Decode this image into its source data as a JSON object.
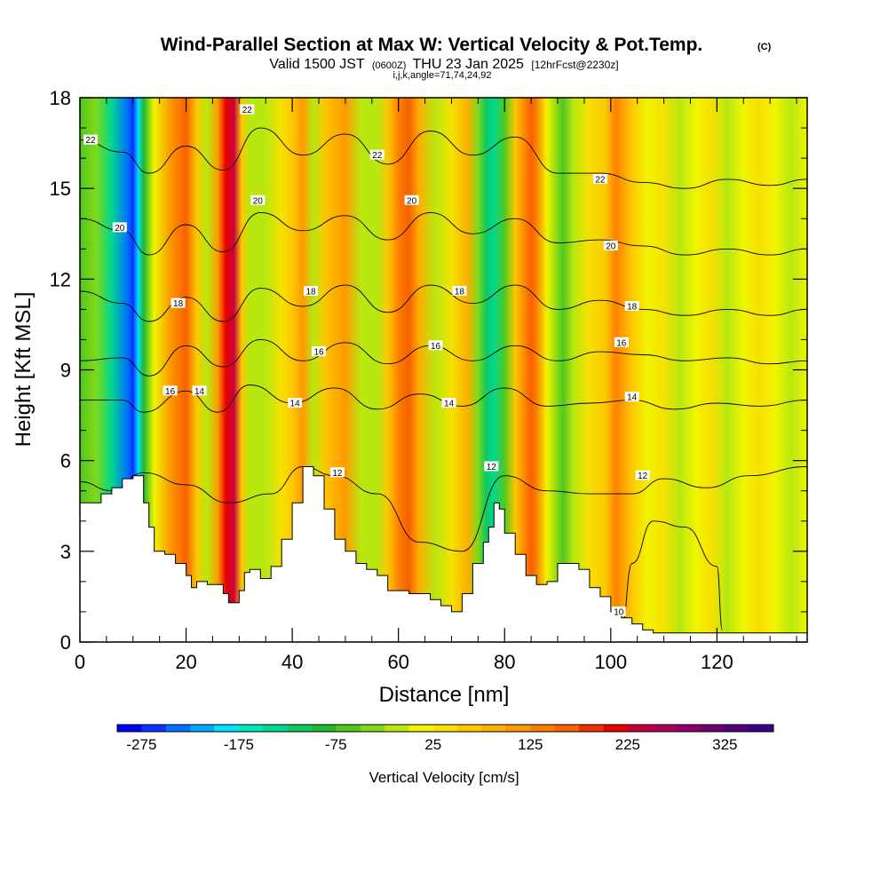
{
  "chart_data": {
    "type": "heatmap",
    "title": "Wind-Parallel Section at Max W: Vertical Velocity & Pot.Temp.",
    "copyright_mark": "(C)",
    "subtitle": {
      "valid_prefix": "Valid 1500 JST",
      "utc": "(0600Z)",
      "date": "THU 23 Jan 2025",
      "forecast": "[12hrFcst@2230z]"
    },
    "indices_line": "i,j,k,angle=71,74,24,92",
    "xlabel": "Distance [nm]",
    "ylabel": "Height [Kft MSL]",
    "xlim": [
      0,
      137
    ],
    "ylim": [
      0,
      18
    ],
    "x_ticks": [
      0,
      20,
      40,
      60,
      80,
      100,
      120
    ],
    "x_tick_labels": [
      "0",
      "20",
      "40",
      "60",
      "80",
      "100",
      "120"
    ],
    "y_ticks": [
      0,
      3,
      6,
      9,
      12,
      15,
      18
    ],
    "y_tick_labels": [
      "0",
      "3",
      "6",
      "9",
      "12",
      "15",
      "18"
    ],
    "colorbar": {
      "title": "Vertical Velocity [cm/s]",
      "min": -300,
      "max": 375,
      "step": 25,
      "tick_values": [
        -275,
        -175,
        -75,
        25,
        125,
        225,
        325
      ],
      "tick_labels": [
        "-275",
        "-175",
        "-75",
        "25",
        "125",
        "225",
        "325"
      ],
      "colors": [
        "#0000ff",
        "#0a32ff",
        "#0070ff",
        "#00a8ff",
        "#00e0ff",
        "#00e8b8",
        "#00d890",
        "#10c860",
        "#20b830",
        "#50c820",
        "#80d818",
        "#b8e810",
        "#f0f400",
        "#f8e000",
        "#fcc800",
        "#fcb000",
        "#fc9a00",
        "#fc8000",
        "#f86000",
        "#f03000",
        "#e80000",
        "#c8003a",
        "#b0005a",
        "#900068",
        "#6c0070",
        "#50007a",
        "#3a0088"
      ]
    },
    "fill_series": {
      "description_units": "vertical velocity cm/s",
      "x_grid": [
        0,
        3,
        6,
        9,
        10,
        11,
        12,
        14,
        17,
        20,
        22,
        24,
        26,
        27.5,
        29,
        30.5,
        32,
        35,
        38,
        40,
        42,
        44,
        46,
        48,
        50,
        53,
        56,
        58,
        60,
        62,
        64,
        67,
        70,
        73,
        75,
        76.5,
        78,
        80,
        82,
        84,
        85,
        86,
        88,
        91,
        93,
        96,
        99,
        101,
        104,
        107,
        110,
        113,
        116,
        119,
        122,
        125,
        128,
        131,
        134,
        137
      ],
      "w_values": [
        -75,
        -50,
        -150,
        -250,
        -275,
        -200,
        -100,
        0,
        100,
        150,
        50,
        -25,
        100,
        200,
        225,
        50,
        -25,
        -25,
        25,
        50,
        100,
        -25,
        50,
        75,
        100,
        -25,
        -25,
        50,
        125,
        150,
        75,
        -25,
        25,
        75,
        -50,
        -125,
        -150,
        -75,
        50,
        125,
        150,
        125,
        0,
        -75,
        -25,
        25,
        50,
        125,
        50,
        0,
        25,
        -25,
        0,
        25,
        -25,
        0,
        25,
        0,
        -25,
        0
      ]
    },
    "terrain_kft": {
      "x": [
        0,
        2,
        4,
        6,
        8,
        10,
        11,
        12,
        13,
        14,
        16,
        18,
        20,
        21,
        22,
        24,
        26,
        27,
        28,
        29,
        30,
        31,
        32,
        34,
        36,
        38,
        40,
        42,
        43,
        44,
        46,
        48,
        50,
        52,
        54,
        56,
        58,
        60,
        62,
        64,
        66,
        68,
        70,
        72,
        74,
        76,
        77,
        78,
        79,
        80,
        82,
        84,
        86,
        88,
        90,
        92,
        94,
        96,
        98,
        100,
        102,
        104,
        106,
        108,
        110,
        112,
        114,
        116,
        118,
        120,
        122,
        124,
        126,
        128,
        130,
        132,
        134,
        137
      ],
      "h": [
        4.6,
        4.6,
        4.9,
        5.1,
        5.4,
        5.5,
        5.5,
        4.6,
        3.8,
        3.0,
        2.9,
        2.6,
        2.2,
        1.8,
        2.0,
        1.9,
        1.9,
        1.6,
        1.3,
        1.3,
        1.7,
        2.3,
        2.4,
        2.1,
        2.5,
        3.4,
        4.6,
        5.8,
        5.8,
        5.5,
        4.4,
        3.4,
        3.0,
        2.6,
        2.4,
        2.2,
        1.7,
        1.7,
        1.6,
        1.6,
        1.4,
        1.2,
        1.0,
        1.6,
        2.6,
        3.3,
        3.8,
        4.6,
        4.4,
        3.6,
        2.9,
        2.2,
        1.9,
        2.0,
        2.6,
        2.6,
        2.4,
        1.8,
        1.5,
        1.0,
        0.8,
        0.6,
        0.4,
        0.3,
        0.3,
        0.3,
        0.3,
        0.3,
        0.3,
        0.3,
        0.3,
        0.3,
        0.3,
        0.3,
        0.3,
        0.3,
        0.3,
        0.3
      ]
    },
    "theta_contours": {
      "units": "deg C potential temperature",
      "series": [
        {
          "value": 10,
          "x": [
            102,
            104,
            108,
            114,
            120,
            121
          ],
          "y": [
            0.4,
            2.6,
            4.0,
            3.8,
            2.5,
            0.4
          ]
        },
        {
          "value": 12,
          "x": [
            0,
            6,
            12,
            20,
            28,
            36,
            42,
            48,
            56,
            64,
            72,
            80,
            88,
            96,
            104,
            110,
            118,
            126,
            137
          ],
          "y": [
            5.3,
            5.0,
            5.6,
            5.2,
            4.6,
            4.9,
            5.8,
            5.5,
            4.9,
            3.3,
            3.0,
            5.5,
            5.0,
            4.9,
            4.9,
            5.4,
            5.1,
            5.5,
            5.8
          ]
        },
        {
          "value": 14,
          "x": [
            0,
            8,
            12,
            20,
            26,
            32,
            40,
            48,
            56,
            64,
            72,
            80,
            88,
            96,
            104,
            112,
            120,
            128,
            137
          ],
          "y": [
            8.0,
            8.0,
            7.6,
            8.3,
            7.6,
            8.5,
            7.9,
            8.4,
            7.7,
            8.2,
            7.8,
            8.4,
            7.8,
            7.9,
            8.0,
            7.7,
            7.9,
            7.8,
            8.0
          ]
        },
        {
          "value": 16,
          "x": [
            0,
            8,
            13,
            20,
            27,
            34,
            42,
            50,
            58,
            66,
            74,
            82,
            90,
            98,
            106,
            114,
            122,
            130,
            137
          ],
          "y": [
            9.3,
            9.4,
            8.8,
            9.8,
            9.1,
            10.0,
            9.3,
            9.9,
            9.2,
            9.8,
            9.3,
            9.8,
            9.3,
            9.6,
            9.5,
            9.3,
            9.4,
            9.2,
            9.3
          ]
        },
        {
          "value": 18,
          "x": [
            0,
            8,
            13,
            20,
            27,
            34,
            42,
            50,
            58,
            66,
            74,
            82,
            90,
            98,
            106,
            114,
            122,
            130,
            137
          ],
          "y": [
            11.6,
            11.2,
            10.6,
            11.4,
            10.6,
            11.7,
            11.1,
            11.8,
            10.9,
            11.8,
            11.2,
            11.8,
            11.0,
            11.3,
            11.0,
            10.8,
            11.0,
            10.8,
            11.0
          ]
        },
        {
          "value": 20,
          "x": [
            0,
            8,
            13,
            20,
            27,
            34,
            42,
            50,
            58,
            66,
            74,
            82,
            90,
            98,
            106,
            114,
            122,
            130,
            137
          ],
          "y": [
            14.0,
            13.6,
            12.8,
            13.8,
            12.9,
            14.2,
            13.6,
            14.1,
            13.3,
            14.2,
            13.5,
            14.0,
            13.2,
            13.3,
            13.1,
            12.8,
            13.0,
            12.8,
            13.0
          ]
        },
        {
          "value": 22,
          "x": [
            0,
            8,
            13,
            20,
            27,
            34,
            42,
            50,
            58,
            66,
            74,
            82,
            90,
            98,
            106,
            114,
            122,
            130,
            137
          ],
          "y": [
            16.6,
            16.2,
            15.5,
            16.4,
            15.6,
            17.0,
            16.1,
            16.8,
            15.8,
            16.9,
            16.1,
            16.7,
            15.5,
            15.5,
            15.2,
            15.0,
            15.3,
            15.1,
            15.3
          ]
        }
      ]
    },
    "contour_labels": [
      {
        "text": "22",
        "x": 2,
        "y": 16.6
      },
      {
        "text": "22",
        "x": 31.5,
        "y": 17.6
      },
      {
        "text": "22",
        "x": 56,
        "y": 16.1
      },
      {
        "text": "22",
        "x": 98,
        "y": 15.3
      },
      {
        "text": "20",
        "x": 7.5,
        "y": 13.7
      },
      {
        "text": "20",
        "x": 33.5,
        "y": 14.6
      },
      {
        "text": "20",
        "x": 62.5,
        "y": 14.6
      },
      {
        "text": "20",
        "x": 100,
        "y": 13.1
      },
      {
        "text": "18",
        "x": 18.5,
        "y": 11.2
      },
      {
        "text": "18",
        "x": 43.5,
        "y": 11.6
      },
      {
        "text": "18",
        "x": 71.5,
        "y": 11.6
      },
      {
        "text": "18",
        "x": 104,
        "y": 11.1
      },
      {
        "text": "16",
        "x": 45,
        "y": 9.6
      },
      {
        "text": "16",
        "x": 67,
        "y": 9.8
      },
      {
        "text": "16",
        "x": 102,
        "y": 9.9
      },
      {
        "text": "16",
        "x": 17,
        "y": 8.3
      },
      {
        "text": "14",
        "x": 22.5,
        "y": 8.3
      },
      {
        "text": "14",
        "x": 40.5,
        "y": 7.9
      },
      {
        "text": "14",
        "x": 69.5,
        "y": 7.9
      },
      {
        "text": "14",
        "x": 104,
        "y": 8.1
      },
      {
        "text": "12",
        "x": 48.5,
        "y": 5.6
      },
      {
        "text": "12",
        "x": 77.5,
        "y": 5.8
      },
      {
        "text": "12",
        "x": 106,
        "y": 5.5
      },
      {
        "text": "10",
        "x": 101.5,
        "y": 1.0
      }
    ]
  }
}
